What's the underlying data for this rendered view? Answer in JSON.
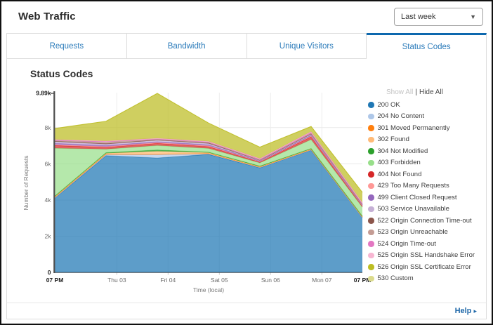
{
  "header": {
    "title": "Web Traffic",
    "range_dropdown": {
      "value": "Last week"
    }
  },
  "tabs": [
    {
      "label": "Requests",
      "active": false
    },
    {
      "label": "Bandwidth",
      "active": false
    },
    {
      "label": "Unique Visitors",
      "active": false
    },
    {
      "label": "Status Codes",
      "active": true
    }
  ],
  "panel": {
    "title": "Status Codes"
  },
  "legend": {
    "show_all_label": "Show All",
    "separator": "|",
    "hide_all_label": "Hide All"
  },
  "footer": {
    "help_label": "Help",
    "help_arrow": "▸"
  },
  "chart_data": {
    "type": "area",
    "stacked": true,
    "title": "Status Codes",
    "xlabel": "Time (local)",
    "ylabel": "Number of Requests",
    "values_unit": "thousands of requests",
    "y_max": 9.89,
    "y_max_label": "9.89k",
    "y_ticks": [
      {
        "v": 0,
        "label": "0"
      },
      {
        "v": 2,
        "label": "2k"
      },
      {
        "v": 4,
        "label": "4k"
      },
      {
        "v": 6,
        "label": "6k"
      },
      {
        "v": 8,
        "label": "8k"
      }
    ],
    "grid": true,
    "legend_position": "right",
    "x_points": 7,
    "x_ticks": [
      {
        "label": "07 PM",
        "pos": 0,
        "bold": true,
        "gridline": false
      },
      {
        "label": "Thu 03",
        "pos": 1.21,
        "bold": false,
        "gridline": true
      },
      {
        "label": "Fri 04",
        "pos": 2.21,
        "bold": false,
        "gridline": true
      },
      {
        "label": "Sat 05",
        "pos": 3.21,
        "bold": false,
        "gridline": true
      },
      {
        "label": "Sun 06",
        "pos": 4.21,
        "bold": false,
        "gridline": true
      },
      {
        "label": "Mon 07",
        "pos": 5.21,
        "bold": false,
        "gridline": true
      },
      {
        "label": "07 PM",
        "pos": 6,
        "bold": true,
        "gridline": false
      }
    ],
    "series": [
      {
        "code": "200",
        "name": "200 OK",
        "color": "#1f77b4",
        "values": [
          4.1,
          6.45,
          6.32,
          6.52,
          5.78,
          6.75,
          3.03
        ]
      },
      {
        "code": "204",
        "name": "204 No Content",
        "color": "#aec7e8",
        "values": [
          0.02,
          0.06,
          0.19,
          0.03,
          0.02,
          0.02,
          0.01
        ]
      },
      {
        "code": "301",
        "name": "301 Moved Permanently",
        "color": "#ff7f0e",
        "values": [
          0.03,
          0.02,
          0.02,
          0.02,
          0.02,
          0.02,
          0.02
        ]
      },
      {
        "code": "302",
        "name": "302 Found",
        "color": "#ffbb78",
        "values": [
          0.04,
          0.05,
          0.16,
          0.05,
          0.03,
          0.03,
          0.03
        ]
      },
      {
        "code": "304",
        "name": "304 Not Modified",
        "color": "#2ca02c",
        "values": [
          0.02,
          0.03,
          0.07,
          0.02,
          0.02,
          0.02,
          0.01
        ]
      },
      {
        "code": "403",
        "name": "403 Forbidden",
        "color": "#98df8a",
        "values": [
          2.65,
          0.2,
          0.25,
          0.21,
          0.18,
          0.5,
          0.5
        ]
      },
      {
        "code": "404",
        "name": "404 Not Found",
        "color": "#d62728",
        "values": [
          0.15,
          0.1,
          0.12,
          0.1,
          0.05,
          0.15,
          0.06
        ]
      },
      {
        "code": "429",
        "name": "429 Too Many Requests",
        "color": "#ff9896",
        "values": [
          0.04,
          0.04,
          0.04,
          0.04,
          0.02,
          0.04,
          0.02
        ]
      },
      {
        "code": "499",
        "name": "499 Client Closed Request",
        "color": "#9467bd",
        "values": [
          0.08,
          0.06,
          0.05,
          0.06,
          0.03,
          0.05,
          0.03
        ]
      },
      {
        "code": "503",
        "name": "503 Service Unavailable",
        "color": "#c5b0d5",
        "values": [
          0.09,
          0.07,
          0.08,
          0.07,
          0.03,
          0.05,
          0.03
        ]
      },
      {
        "code": "522",
        "name": "522 Origin Connection Time-out",
        "color": "#8c564b",
        "values": [
          0.03,
          0.04,
          0.02,
          0.03,
          0.02,
          0.03,
          0.01
        ]
      },
      {
        "code": "523",
        "name": "523 Origin Unreachable",
        "color": "#c49c94",
        "values": [
          0.03,
          0.08,
          0.03,
          0.03,
          0.02,
          0.03,
          0.01
        ]
      },
      {
        "code": "524",
        "name": "524 Origin Time-out",
        "color": "#e377c2",
        "values": [
          0.03,
          0.03,
          0.03,
          0.03,
          0.04,
          0.06,
          0.06
        ]
      },
      {
        "code": "525",
        "name": "525 Origin SSL Handshake Error",
        "color": "#f7b6d2",
        "values": [
          0.03,
          0.03,
          0.03,
          0.03,
          0.03,
          0.03,
          0.03
        ]
      },
      {
        "code": "526",
        "name": "526 Origin SSL Certificate Error",
        "color": "#bcbd22",
        "values": [
          0.61,
          1.09,
          2.48,
          1.01,
          0.63,
          0.28,
          0.57
        ]
      },
      {
        "code": "530",
        "name": "530 Custom",
        "color": "#dbdb8d",
        "values": [
          0,
          0,
          0,
          0,
          0,
          0,
          0
        ]
      }
    ]
  }
}
